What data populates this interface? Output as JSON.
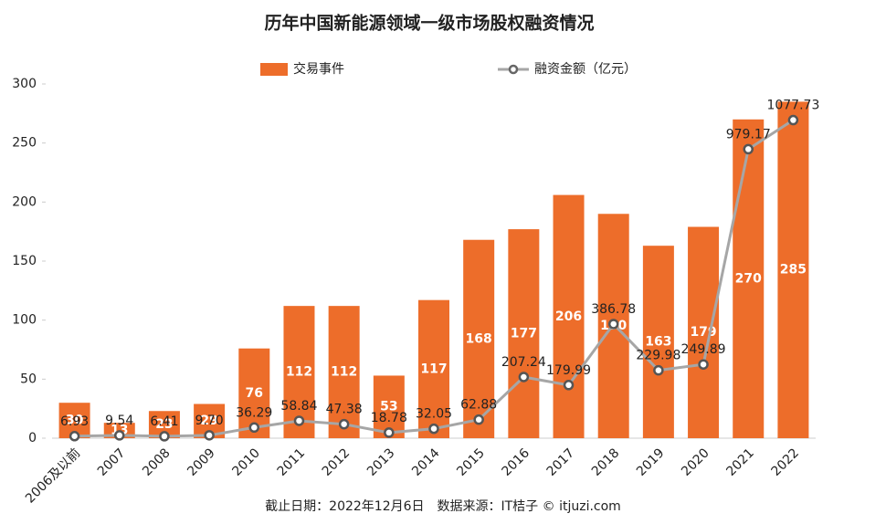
{
  "chart_data": {
    "type": "bar",
    "title": "历年中国新能源领域一级市场股权融资情况",
    "source": "截止日期：2022年12月6日　数据来源：IT桔子 © itjuzi.com",
    "categories": [
      "2006及以前",
      "2007",
      "2008",
      "2009",
      "2010",
      "2011",
      "2012",
      "2013",
      "2014",
      "2015",
      "2016",
      "2017",
      "2018",
      "2019",
      "2020",
      "2021",
      "2022"
    ],
    "series": [
      {
        "name": "交易事件",
        "type": "bar",
        "color": "#ed6d2a",
        "values": [
          30,
          13,
          23,
          29,
          76,
          112,
          112,
          53,
          117,
          168,
          177,
          206,
          190,
          163,
          179,
          270,
          285
        ]
      },
      {
        "name": "融资金额（亿元）",
        "type": "line",
        "axis": "y2",
        "color": "#a6a6a6",
        "values": [
          6.93,
          9.54,
          6.41,
          9.7,
          36.29,
          58.84,
          47.38,
          18.78,
          32.05,
          62.88,
          207.24,
          179.99,
          386.78,
          229.98,
          249.89,
          979.17,
          1077.73
        ],
        "value_labels": [
          "6.93",
          "9.54",
          "6.41",
          "9.70",
          "36.29",
          "58.84",
          "47.38",
          "18.78",
          "32.05",
          "62.88",
          "207.24",
          "179.99",
          "386.78",
          "229.98",
          "249.89",
          "979.17",
          "1077.73"
        ]
      }
    ],
    "ylim": [
      0,
      300
    ],
    "yticks": [
      0,
      50,
      100,
      150,
      200,
      250,
      300
    ],
    "y2lim": [
      0,
      1200
    ],
    "legend": "top"
  }
}
